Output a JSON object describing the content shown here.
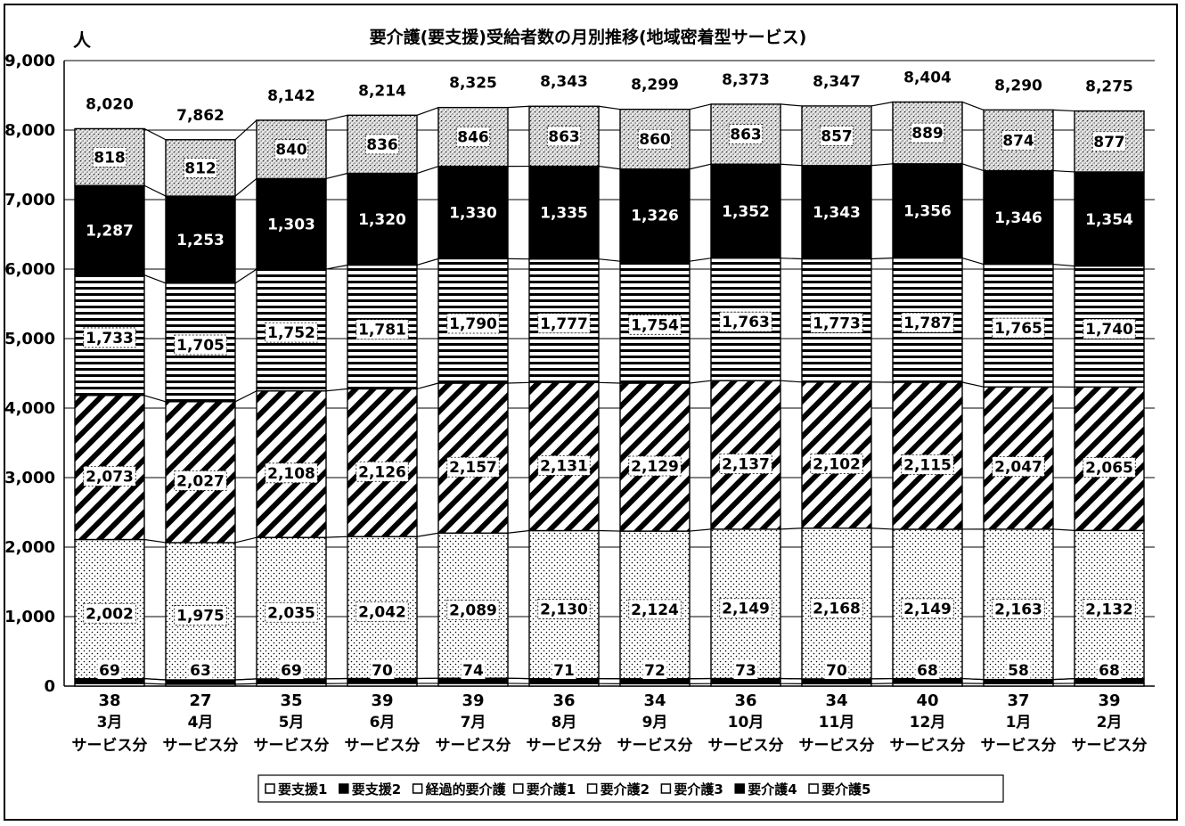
{
  "chart_data": {
    "type": "bar",
    "stacked": true,
    "title": "要介護(要支援)受給者数の月別推移(地域密着型サービス)",
    "unit": "人",
    "ylim": [
      0,
      9000
    ],
    "yticks": [
      "0",
      "1,000",
      "2,000",
      "3,000",
      "4,000",
      "5,000",
      "6,000",
      "7,000",
      "8,000",
      "9,000"
    ],
    "grid": true,
    "legend_position": "bottom",
    "categories": [
      {
        "month": "3月",
        "suffix": "サービス分"
      },
      {
        "month": "4月",
        "suffix": "サービス分"
      },
      {
        "month": "5月",
        "suffix": "サービス分"
      },
      {
        "month": "6月",
        "suffix": "サービス分"
      },
      {
        "month": "7月",
        "suffix": "サービス分"
      },
      {
        "month": "8月",
        "suffix": "サービス分"
      },
      {
        "month": "9月",
        "suffix": "サービス分"
      },
      {
        "month": "10月",
        "suffix": "サービス分"
      },
      {
        "month": "11月",
        "suffix": "サービス分"
      },
      {
        "month": "12月",
        "suffix": "サービス分"
      },
      {
        "month": "1月",
        "suffix": "サービス分"
      },
      {
        "month": "2月",
        "suffix": "サービス分"
      }
    ],
    "totals": [
      "8,020",
      "7,862",
      "8,142",
      "8,214",
      "8,325",
      "8,343",
      "8,299",
      "8,373",
      "8,347",
      "8,404",
      "8,290",
      "8,275"
    ],
    "series": [
      {
        "name": "要支援1",
        "values": [
          38,
          27,
          35,
          39,
          39,
          36,
          34,
          36,
          34,
          40,
          37,
          39
        ],
        "labels": [
          "38",
          "27",
          "35",
          "39",
          "39",
          "36",
          "34",
          "36",
          "34",
          "40",
          "37",
          "39"
        ],
        "fill": "white"
      },
      {
        "name": "要支援2",
        "values": [
          69,
          63,
          69,
          70,
          74,
          71,
          72,
          73,
          70,
          68,
          58,
          68
        ],
        "labels": [
          "69",
          "63",
          "69",
          "70",
          "74",
          "71",
          "72",
          "73",
          "70",
          "68",
          "58",
          "68"
        ],
        "fill": "black"
      },
      {
        "name": "経過的要介護",
        "values": [
          0,
          0,
          0,
          0,
          0,
          0,
          0,
          0,
          0,
          0,
          0,
          0
        ],
        "labels": [],
        "fill": "white"
      },
      {
        "name": "要介護1",
        "values": [
          2002,
          1975,
          2035,
          2042,
          2089,
          2130,
          2124,
          2149,
          2168,
          2149,
          2163,
          2132
        ],
        "labels": [
          "2,002",
          "1,975",
          "2,035",
          "2,042",
          "2,089",
          "2,130",
          "2,124",
          "2,149",
          "2,168",
          "2,149",
          "2,163",
          "2,132"
        ],
        "fill": "dots"
      },
      {
        "name": "要介護2",
        "values": [
          2073,
          2027,
          2108,
          2126,
          2157,
          2131,
          2129,
          2137,
          2102,
          2115,
          2047,
          2065
        ],
        "labels": [
          "2,073",
          "2,027",
          "2,108",
          "2,126",
          "2,157",
          "2,131",
          "2,129",
          "2,137",
          "2,102",
          "2,115",
          "2,047",
          "2,065"
        ],
        "fill": "diagonal"
      },
      {
        "name": "要介護3",
        "values": [
          1733,
          1705,
          1752,
          1781,
          1790,
          1777,
          1754,
          1763,
          1773,
          1787,
          1765,
          1740
        ],
        "labels": [
          "1,733",
          "1,705",
          "1,752",
          "1,781",
          "1,790",
          "1,777",
          "1,754",
          "1,763",
          "1,773",
          "1,787",
          "1,765",
          "1,740"
        ],
        "fill": "horizontal"
      },
      {
        "name": "要介護4",
        "values": [
          1287,
          1253,
          1303,
          1320,
          1330,
          1335,
          1326,
          1352,
          1343,
          1356,
          1346,
          1354
        ],
        "labels": [
          "1,287",
          "1,253",
          "1,303",
          "1,320",
          "1,330",
          "1,335",
          "1,326",
          "1,352",
          "1,343",
          "1,356",
          "1,346",
          "1,354"
        ],
        "fill": "black"
      },
      {
        "name": "要介護5",
        "values": [
          818,
          812,
          840,
          836,
          846,
          863,
          860,
          863,
          857,
          889,
          874,
          877
        ],
        "labels": [
          "818",
          "812",
          "840",
          "836",
          "846",
          "863",
          "860",
          "863",
          "857",
          "889",
          "874",
          "877"
        ],
        "fill": "stipple"
      }
    ]
  }
}
